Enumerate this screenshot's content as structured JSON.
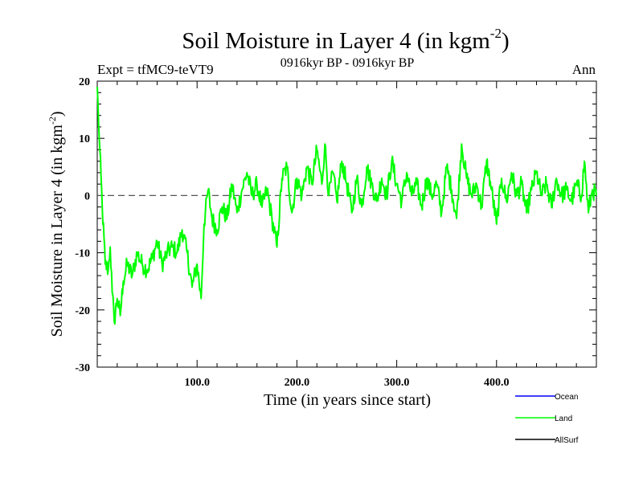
{
  "chart_data": {
    "type": "line",
    "title": "Soil Moisture in Layer 4 (in kgm",
    "title_sup": "-2",
    "title_close": ")",
    "subtitle_left": "Expt = tfMC9-teVT9",
    "subtitle_center": "0916kyr BP - 0916kyr BP",
    "subtitle_right": "Ann",
    "xlabel": "Time (in years since start)",
    "ylabel": "Soil Moisture in Layer 4 (in kgm",
    "ylabel_sup": "-2",
    "ylabel_close": ")",
    "xlim": [
      0,
      500
    ],
    "ylim": [
      -30,
      20
    ],
    "x_ticks": [
      100,
      200,
      300,
      400
    ],
    "x_tick_labels": [
      "100.0",
      "200.0",
      "300.0",
      "400.0"
    ],
    "y_ticks": [
      20,
      10,
      0,
      -10,
      -20,
      -30
    ],
    "y_tick_labels": [
      "20",
      "10",
      "0",
      "-10",
      "-20",
      "-30"
    ],
    "zero_line": 0,
    "legend": [
      {
        "name": "Ocean",
        "color": "#0000ff"
      },
      {
        "name": "Land",
        "color": "#00ff00"
      },
      {
        "name": "AllSurf",
        "color": "#000000"
      }
    ],
    "series": [
      {
        "name": "Land",
        "color": "#00ff00",
        "keypoints": [
          [
            0,
            19
          ],
          [
            2,
            10
          ],
          [
            5,
            -2
          ],
          [
            8,
            -12
          ],
          [
            11,
            -13
          ],
          [
            13,
            -9
          ],
          [
            15,
            -17
          ],
          [
            17,
            -22
          ],
          [
            20,
            -18
          ],
          [
            23,
            -21
          ],
          [
            26,
            -15
          ],
          [
            30,
            -12
          ],
          [
            35,
            -14
          ],
          [
            40,
            -10
          ],
          [
            45,
            -12
          ],
          [
            50,
            -13
          ],
          [
            55,
            -11
          ],
          [
            60,
            -8
          ],
          [
            65,
            -12
          ],
          [
            70,
            -10
          ],
          [
            75,
            -9
          ],
          [
            80,
            -10
          ],
          [
            85,
            -6
          ],
          [
            90,
            -10
          ],
          [
            95,
            -16
          ],
          [
            100,
            -12
          ],
          [
            104,
            -18
          ],
          [
            107,
            -5
          ],
          [
            111,
            1
          ],
          [
            115,
            -4
          ],
          [
            120,
            -6
          ],
          [
            125,
            -2
          ],
          [
            130,
            -4
          ],
          [
            135,
            2
          ],
          [
            140,
            -3
          ],
          [
            145,
            1
          ],
          [
            150,
            4
          ],
          [
            155,
            0
          ],
          [
            160,
            2
          ],
          [
            165,
            -2
          ],
          [
            170,
            1
          ],
          [
            175,
            -4
          ],
          [
            180,
            -9
          ],
          [
            185,
            3
          ],
          [
            190,
            5
          ],
          [
            195,
            -3
          ],
          [
            200,
            3
          ],
          [
            205,
            0
          ],
          [
            210,
            5
          ],
          [
            215,
            2
          ],
          [
            220,
            8
          ],
          [
            225,
            2
          ],
          [
            228,
            9
          ],
          [
            232,
            0
          ],
          [
            236,
            4
          ],
          [
            240,
            -1
          ],
          [
            245,
            6
          ],
          [
            250,
            2
          ],
          [
            255,
            -3
          ],
          [
            260,
            3
          ],
          [
            265,
            -2
          ],
          [
            270,
            5
          ],
          [
            275,
            2
          ],
          [
            280,
            -1
          ],
          [
            285,
            3
          ],
          [
            290,
            0
          ],
          [
            295,
            6
          ],
          [
            300,
            2
          ],
          [
            305,
            -1
          ],
          [
            310,
            4
          ],
          [
            315,
            0
          ],
          [
            320,
            2
          ],
          [
            325,
            -2
          ],
          [
            330,
            3
          ],
          [
            335,
            0
          ],
          [
            340,
            2
          ],
          [
            345,
            -3
          ],
          [
            350,
            5
          ],
          [
            355,
            1
          ],
          [
            360,
            -4
          ],
          [
            365,
            9
          ],
          [
            370,
            3
          ],
          [
            375,
            0
          ],
          [
            380,
            2
          ],
          [
            385,
            -2
          ],
          [
            390,
            6
          ],
          [
            395,
            1
          ],
          [
            400,
            -5
          ],
          [
            405,
            3
          ],
          [
            410,
            -1
          ],
          [
            415,
            4
          ],
          [
            420,
            0
          ],
          [
            425,
            2
          ],
          [
            430,
            -3
          ],
          [
            435,
            1
          ],
          [
            440,
            4
          ],
          [
            445,
            0
          ],
          [
            450,
            2
          ],
          [
            455,
            -2
          ],
          [
            460,
            3
          ],
          [
            465,
            0
          ],
          [
            470,
            1
          ],
          [
            475,
            -1
          ],
          [
            480,
            2
          ],
          [
            485,
            0
          ],
          [
            488,
            6
          ],
          [
            492,
            -3
          ],
          [
            496,
            1
          ],
          [
            500,
            0
          ]
        ]
      }
    ]
  }
}
